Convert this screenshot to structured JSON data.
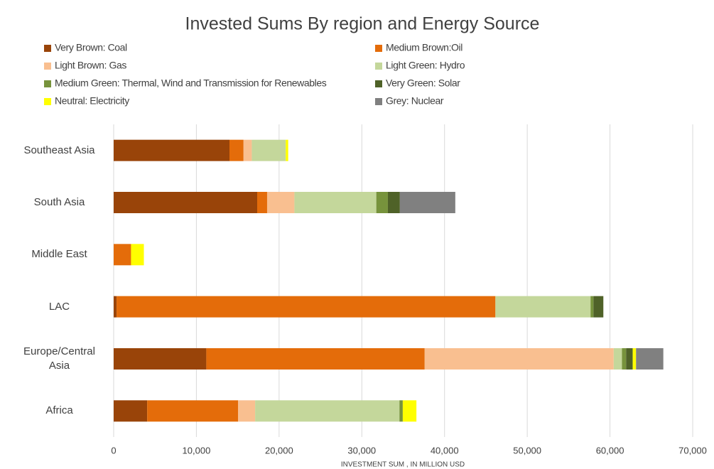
{
  "chart_data": {
    "type": "stacked_barh",
    "title": "Invested Sums By region and Energy Source",
    "x_label": "INVESTMENT SUM , IN MILLION USD",
    "categories": [
      "Southeast Asia",
      "South Asia",
      "Middle East",
      "LAC",
      "Europe/Central Asia",
      "Africa"
    ],
    "series": [
      {
        "name": "Very Brown: Coal",
        "color": "#994409",
        "values": [
          14000,
          17350,
          0,
          350,
          11200,
          4050
        ]
      },
      {
        "name": "Medium Brown:Oil",
        "color": "#e46c0a",
        "values": [
          1700,
          1200,
          2100,
          45800,
          26400,
          11000
        ]
      },
      {
        "name": "Light Brown: Gas",
        "color": "#f9bf90",
        "values": [
          1000,
          3300,
          0,
          0,
          22850,
          2050
        ]
      },
      {
        "name": "Light Green: Hydro",
        "color": "#c4d79b",
        "values": [
          4100,
          9900,
          0,
          11500,
          1000,
          17450
        ]
      },
      {
        "name": "Medium Green: Thermal, Wind and Transmission for Renewables",
        "color": "#77933c",
        "values": [
          0,
          1400,
          0,
          350,
          500,
          400
        ]
      },
      {
        "name": "Very Green: Solar",
        "color": "#4f6228",
        "values": [
          0,
          1450,
          0,
          1200,
          800,
          0
        ]
      },
      {
        "name": "Neutral: Electricity",
        "color": "#ffff00",
        "values": [
          300,
          0,
          1550,
          0,
          400,
          1650
        ]
      },
      {
        "name": "Grey: Nuclear",
        "color": "#808080",
        "values": [
          0,
          6700,
          0,
          0,
          3300,
          0
        ]
      }
    ],
    "xlim": [
      0,
      70000
    ],
    "xticks": [
      0,
      {
        "value": 10000,
        "label": "10,000"
      },
      {
        "value": 20000,
        "label": "20,000"
      },
      {
        "value": 30000,
        "label": "30,000"
      },
      {
        "value": 40000,
        "label": "40,000"
      },
      {
        "value": 50000,
        "label": "50,000"
      },
      {
        "value": 60000,
        "label": "60,000"
      },
      {
        "value": 70000,
        "label": "70,000"
      }
    ],
    "grid": true
  }
}
